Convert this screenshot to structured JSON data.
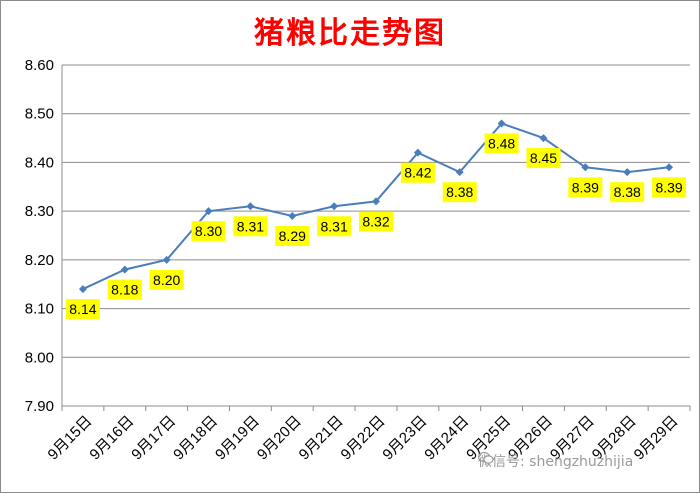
{
  "chart_data": {
    "type": "line",
    "title": "猪粮比走势图",
    "categories": [
      "9月15日",
      "9月16日",
      "9月17日",
      "9月18日",
      "9月19日",
      "9月20日",
      "9月21日",
      "9月22日",
      "9月23日",
      "9月24日",
      "9月25日",
      "9月26日",
      "9月27日",
      "9月28日",
      "9月29日"
    ],
    "values": [
      8.14,
      8.18,
      8.2,
      8.3,
      8.31,
      8.29,
      8.31,
      8.32,
      8.42,
      8.38,
      8.48,
      8.45,
      8.39,
      8.38,
      8.39
    ],
    "data_labels": [
      "8.14",
      "8.18",
      "8.20",
      "8.30",
      "8.31",
      "8.29",
      "8.31",
      "8.32",
      "8.42",
      "8.38",
      "8.48",
      "8.45",
      "8.39",
      "8.38",
      "8.39"
    ],
    "yticks": [
      "7.90",
      "8.00",
      "8.10",
      "8.20",
      "8.30",
      "8.40",
      "8.50",
      "8.60"
    ],
    "ylim": [
      7.9,
      8.6
    ],
    "grid": "horizontal",
    "legend": "none",
    "colors": {
      "line": "#4a7ebb",
      "label_bg": "#ffff00",
      "title": "#ff0000"
    }
  },
  "watermark": {
    "text": "微信号: shengzhuzhijia",
    "icon": "wechat-icon"
  }
}
